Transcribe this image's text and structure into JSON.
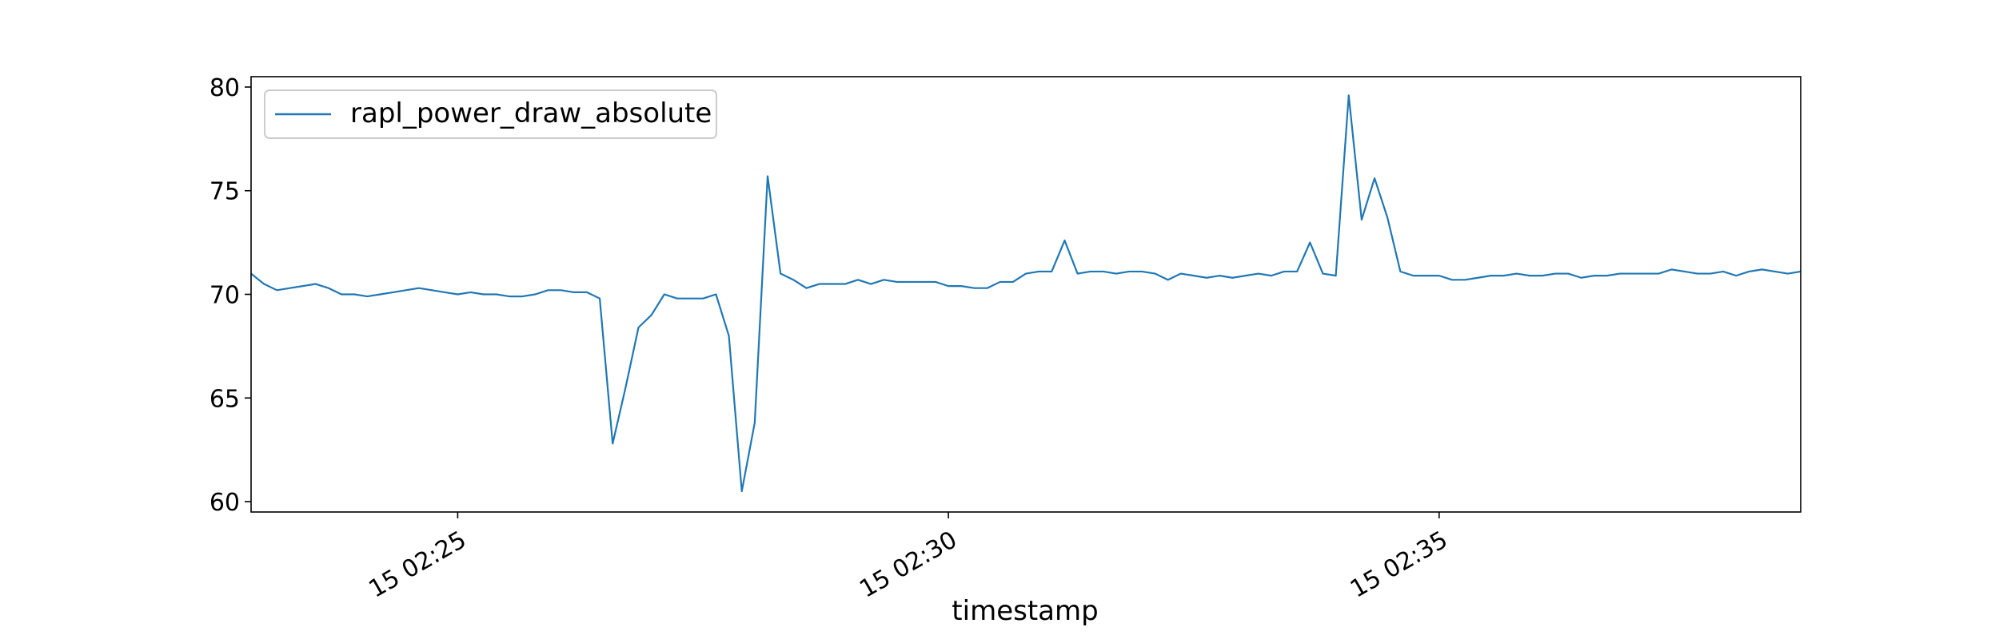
{
  "chart_data": {
    "type": "line",
    "title": "",
    "xlabel": "timestamp",
    "ylabel": "",
    "x_tick_labels": [
      "15 02:25",
      "15 02:30",
      "15 02:35"
    ],
    "y_tick_labels": [
      "60",
      "65",
      "70",
      "75",
      "80"
    ],
    "y_ticks": [
      60,
      65,
      70,
      75,
      80
    ],
    "ylim": [
      59.5,
      80.5
    ],
    "x_tick_indices": [
      16,
      54,
      92
    ],
    "xlim_indices": [
      0,
      120
    ],
    "grid": false,
    "legend_position": "top-left",
    "series": [
      {
        "name": "rapl_power_draw_absolute",
        "color": "#1f77b4",
        "values": [
          71.0,
          70.5,
          70.2,
          70.3,
          70.4,
          70.5,
          70.3,
          70.0,
          70.0,
          69.9,
          70.0,
          70.1,
          70.2,
          70.3,
          70.2,
          70.1,
          70.0,
          70.1,
          70.0,
          70.0,
          69.9,
          69.9,
          70.0,
          70.2,
          70.2,
          70.1,
          70.1,
          69.8,
          62.8,
          65.5,
          68.4,
          69.0,
          70.0,
          69.8,
          69.8,
          69.8,
          70.0,
          68.0,
          60.5,
          63.8,
          75.7,
          71.0,
          70.7,
          70.3,
          70.5,
          70.5,
          70.5,
          70.7,
          70.5,
          70.7,
          70.6,
          70.6,
          70.6,
          70.6,
          70.4,
          70.4,
          70.3,
          70.3,
          70.6,
          70.6,
          71.0,
          71.1,
          71.1,
          72.6,
          71.0,
          71.1,
          71.1,
          71.0,
          71.1,
          71.1,
          71.0,
          70.7,
          71.0,
          70.9,
          70.8,
          70.9,
          70.8,
          70.9,
          71.0,
          70.9,
          71.1,
          71.1,
          72.5,
          71.0,
          70.9,
          79.6,
          73.6,
          75.6,
          73.7,
          71.1,
          70.9,
          70.9,
          70.9,
          70.7,
          70.7,
          70.8,
          70.9,
          70.9,
          71.0,
          70.9,
          70.9,
          71.0,
          71.0,
          70.8,
          70.9,
          70.9,
          71.0,
          71.0,
          71.0,
          71.0,
          71.2,
          71.1,
          71.0,
          71.0,
          71.1,
          70.9,
          71.1,
          71.2,
          71.1,
          71.0,
          71.1
        ]
      }
    ]
  }
}
